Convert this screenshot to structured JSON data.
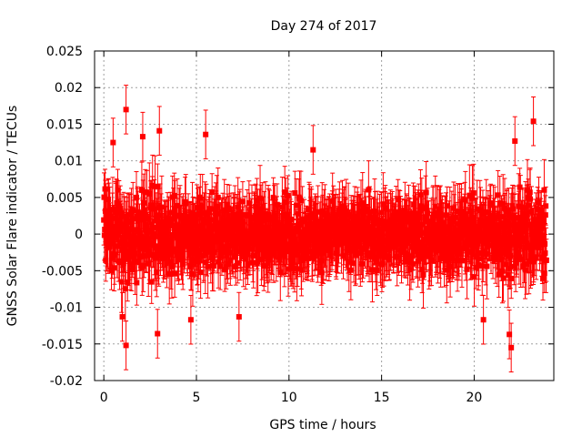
{
  "chart_data": {
    "type": "scatter",
    "title": "Day 274 of 2017",
    "xlabel": "GPS time / hours",
    "ylabel": "GNSS Solar Flare indicator / TECUs",
    "xlim": [
      -0.5,
      24.3
    ],
    "ylim": [
      -0.02,
      0.025
    ],
    "xticks": [
      0,
      5,
      10,
      15,
      20
    ],
    "xtick_labels": [
      "0",
      "5",
      "10",
      "15",
      "20"
    ],
    "yticks": [
      -0.02,
      -0.015,
      -0.01,
      -0.005,
      0,
      0.005,
      0.01,
      0.015,
      0.02,
      0.025
    ],
    "ytick_labels": [
      "-0.02",
      "-0.015",
      "-0.01",
      "-0.005",
      "0",
      "0.005",
      "0.01",
      "0.015",
      "0.02",
      "0.025"
    ],
    "grid": true,
    "series": [
      {
        "name": "Solar flare indicator",
        "color": "#ff0000",
        "marker": "square",
        "error_bars": true,
        "x_range_hours": [
          0,
          23.9
        ],
        "mean": 0.0,
        "typical_spread": 0.004,
        "typical_error": 0.0035,
        "notable_points": [
          {
            "x": 1.2,
            "y": 0.017
          },
          {
            "x": 0.5,
            "y": 0.0125
          },
          {
            "x": 2.1,
            "y": 0.0133
          },
          {
            "x": 3.0,
            "y": 0.0141
          },
          {
            "x": 5.5,
            "y": 0.0136
          },
          {
            "x": 11.3,
            "y": 0.0115
          },
          {
            "x": 22.2,
            "y": 0.0127
          },
          {
            "x": 23.2,
            "y": 0.0154
          },
          {
            "x": 1.2,
            "y": -0.0152
          },
          {
            "x": 2.9,
            "y": -0.0136
          },
          {
            "x": 22.0,
            "y": -0.0155
          },
          {
            "x": 21.9,
            "y": -0.0137
          },
          {
            "x": 1.0,
            "y": -0.0113
          },
          {
            "x": 4.7,
            "y": -0.0117
          },
          {
            "x": 7.3,
            "y": -0.0113
          },
          {
            "x": 20.5,
            "y": -0.0117
          }
        ]
      }
    ]
  }
}
